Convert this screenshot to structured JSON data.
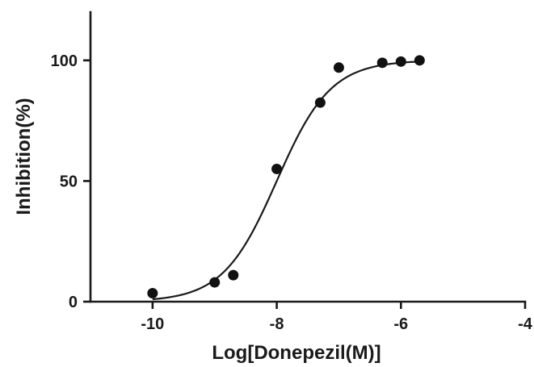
{
  "chart_data": {
    "type": "scatter",
    "title": "",
    "xlabel": "Log[Donepezil(M)]",
    "ylabel": "Inhibition(%)",
    "xlim": [
      -11,
      -4
    ],
    "ylim": [
      0,
      120
    ],
    "x_ticks": [
      -10,
      -8,
      -6,
      -4
    ],
    "y_ticks": [
      0,
      50,
      100
    ],
    "grid": false,
    "legend": "none",
    "series": [
      {
        "x": [
          -10.0,
          -9.0,
          -8.7,
          -8.0,
          -7.3,
          -7.0,
          -6.3,
          -6.0,
          -5.7
        ],
        "y": [
          3.5,
          8.0,
          11.0,
          55.0,
          82.5,
          97.0,
          99.0,
          99.5,
          100.0
        ]
      }
    ],
    "fit": {
      "model": "sigmoidal dose-response",
      "x_range": [
        -10.0,
        -5.7
      ],
      "bottom": 0,
      "top": 100,
      "logEC50": -8.0,
      "hill_slope": 1.0
    },
    "colors": {
      "axis": "#1a1a1a",
      "points": "#111111",
      "curve": "#1a1a1a"
    }
  }
}
